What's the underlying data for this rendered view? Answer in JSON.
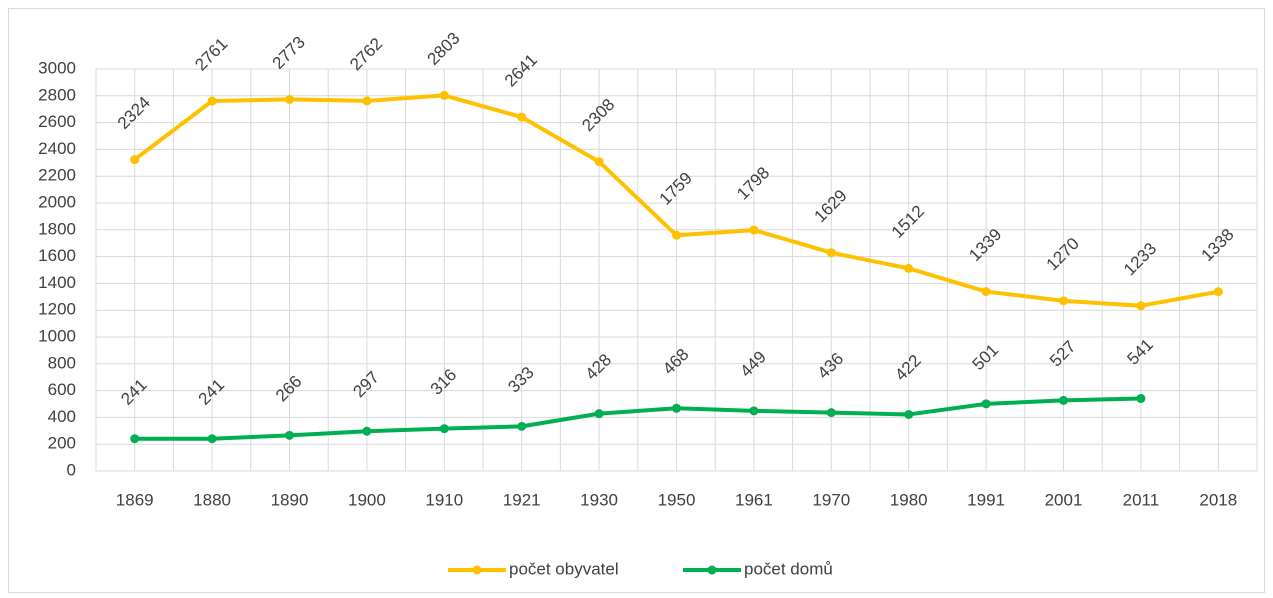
{
  "chart_data": {
    "type": "line",
    "categories": [
      "1869",
      "1880",
      "1890",
      "1900",
      "1910",
      "1921",
      "1930",
      "1950",
      "1961",
      "1970",
      "1980",
      "1991",
      "2001",
      "2011",
      "2018"
    ],
    "series": [
      {
        "name": "počet obyvatel",
        "color": "#FFC000",
        "values": [
          2324,
          2761,
          2773,
          2762,
          2803,
          2641,
          2308,
          1759,
          1798,
          1629,
          1512,
          1339,
          1270,
          1233,
          1338
        ]
      },
      {
        "name": "počet domů",
        "color": "#00B050",
        "values": [
          241,
          241,
          266,
          297,
          316,
          333,
          428,
          468,
          449,
          436,
          422,
          501,
          527,
          541,
          null
        ]
      }
    ],
    "ylim": [
      0,
      3000
    ],
    "yticks": [
      0,
      200,
      400,
      600,
      800,
      1000,
      1200,
      1400,
      1600,
      1800,
      2000,
      2200,
      2400,
      2600,
      2800,
      3000
    ],
    "grid": true,
    "legend": "bottom"
  }
}
